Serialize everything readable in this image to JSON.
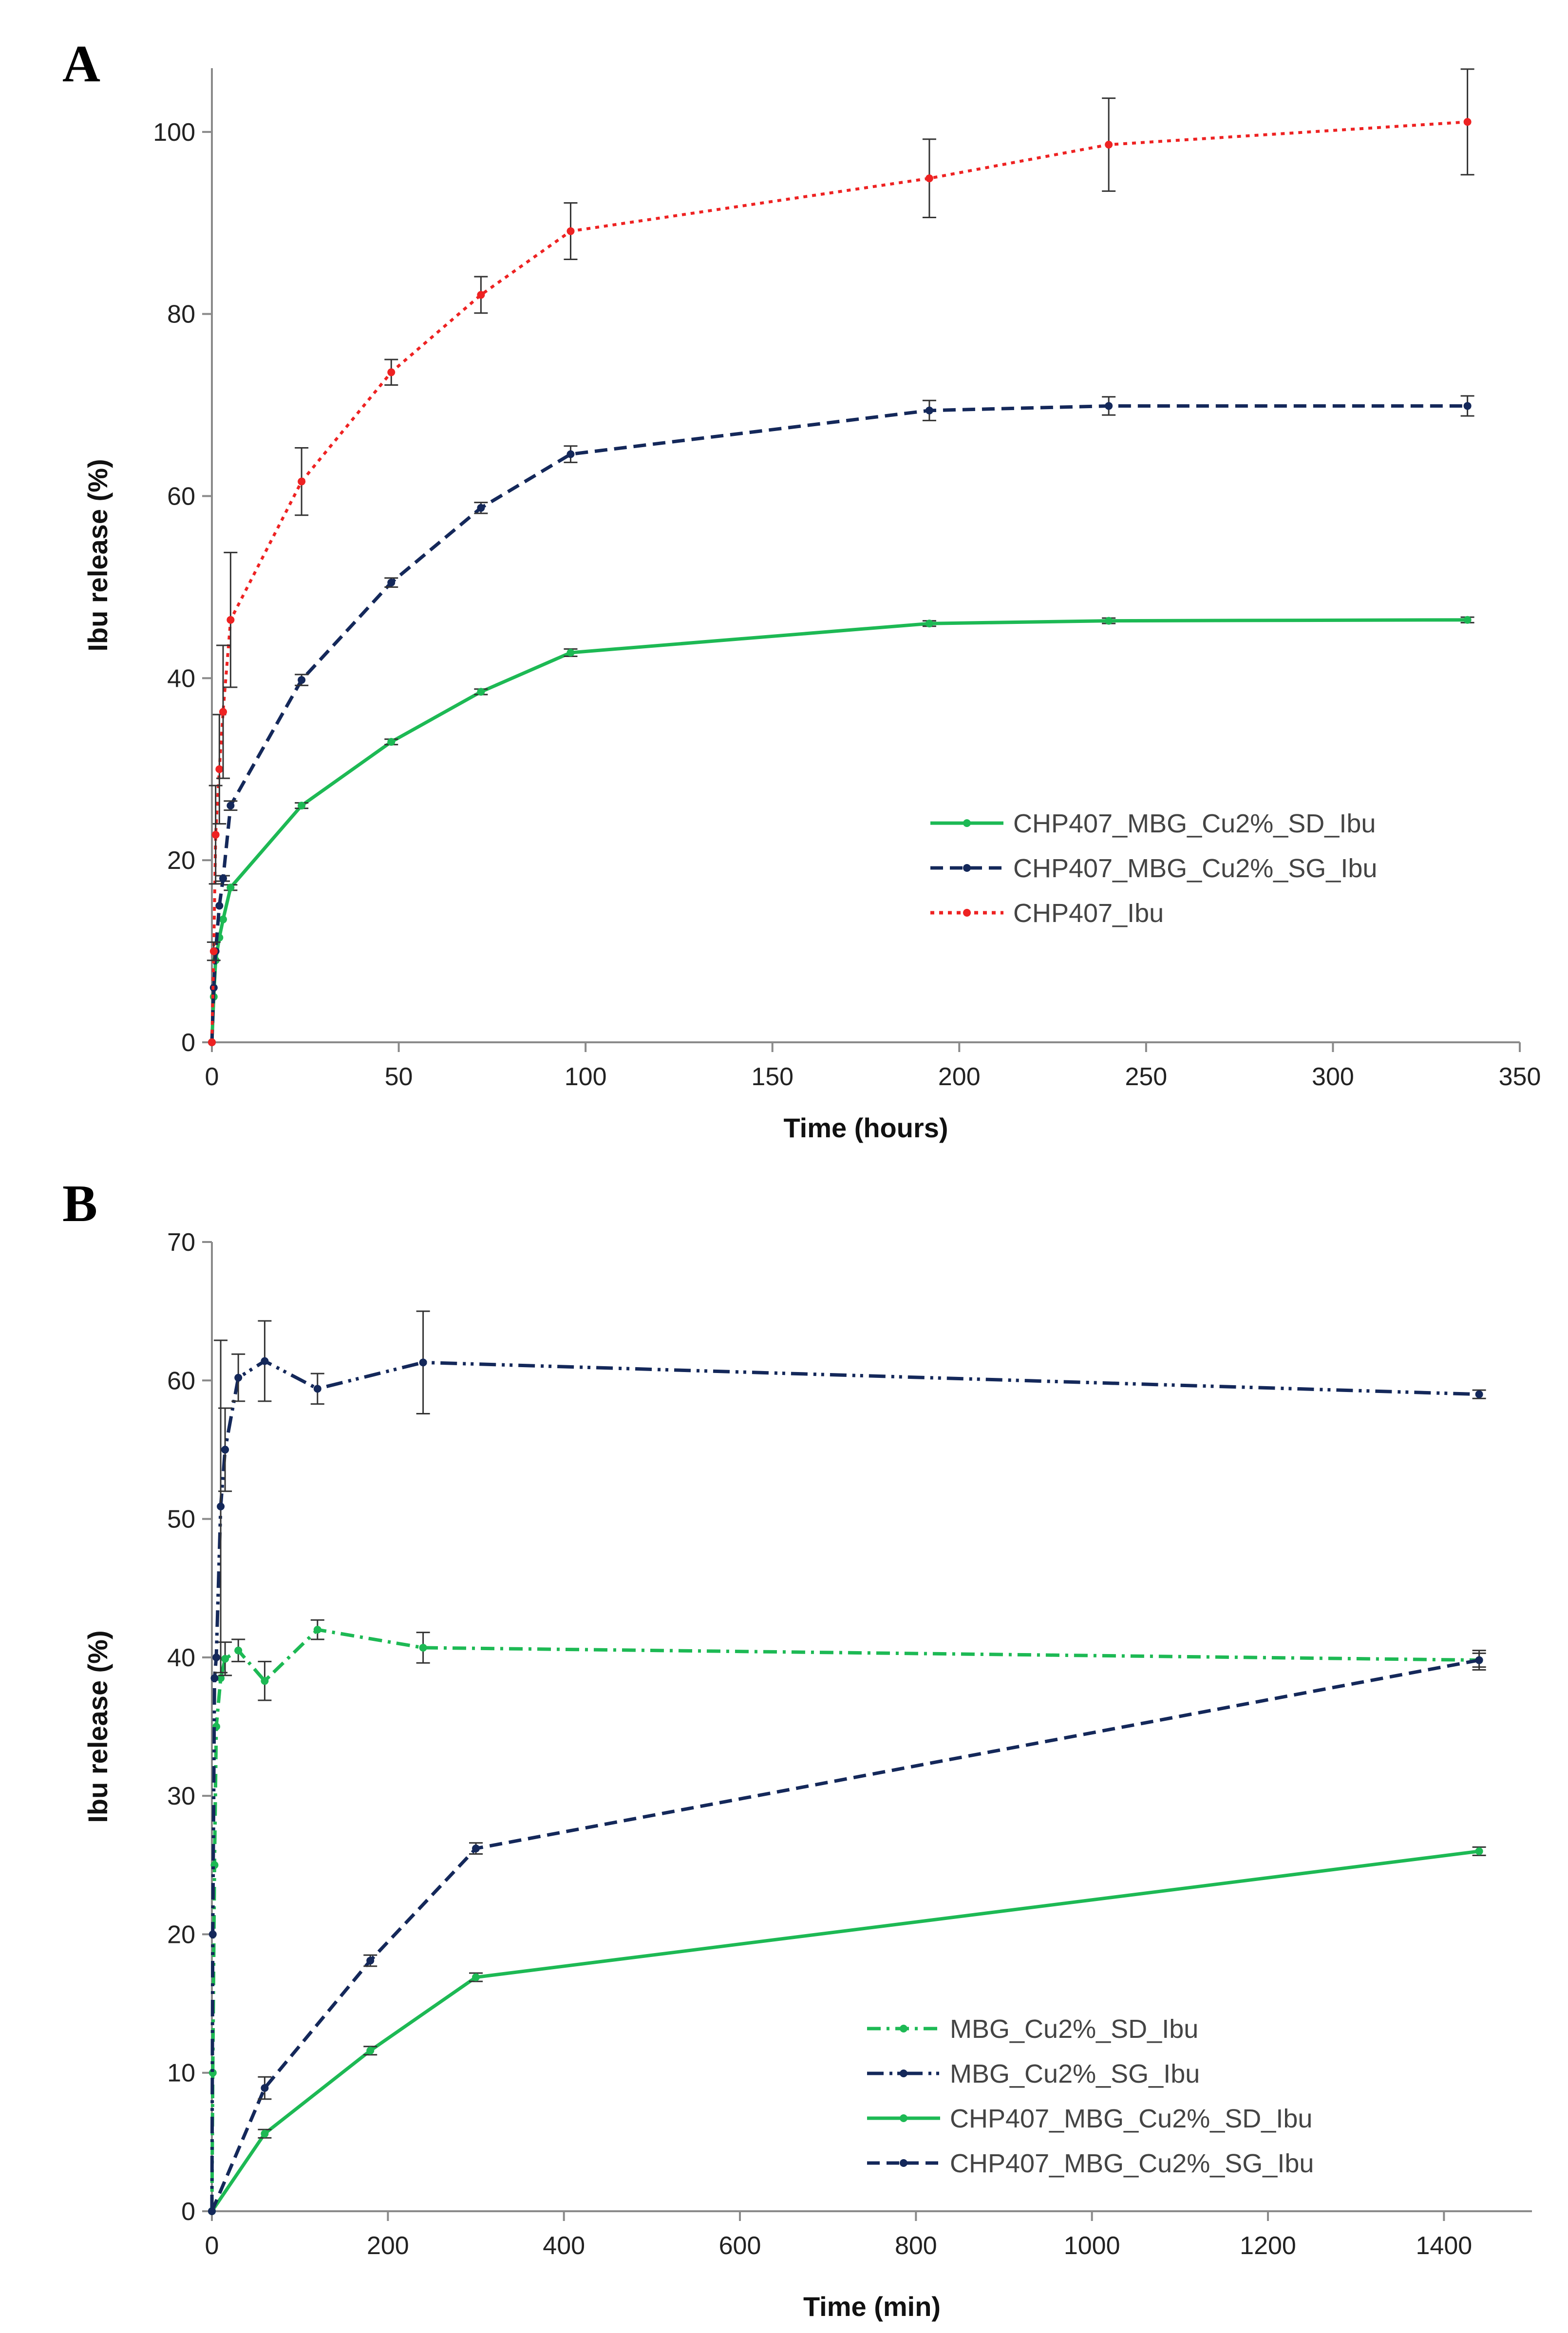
{
  "chart_data": [
    {
      "panel_label": "A",
      "type": "line",
      "xlabel": "Time (hours)",
      "ylabel": "Ibu release (%)",
      "xlim": [
        0,
        350
      ],
      "ylim": [
        0,
        107
      ],
      "xticks": [
        0,
        50,
        100,
        150,
        200,
        250,
        300,
        350
      ],
      "yticks": [
        0,
        20,
        40,
        60,
        80,
        100
      ],
      "grid": false,
      "legend_position": "center-right",
      "series": [
        {
          "name": "CHP407_MBG_Cu2%_SD_Ibu",
          "color": "#1db954",
          "style": "solid",
          "x": [
            0,
            0.5,
            1,
            2,
            3,
            5,
            24,
            48,
            72,
            96,
            192,
            240,
            336
          ],
          "y": [
            0,
            5,
            9,
            11.5,
            13.5,
            17,
            26,
            33,
            38.5,
            42.8,
            46,
            46.3,
            46.4
          ],
          "err": [
            0,
            0,
            0,
            0,
            0,
            0.3,
            0.3,
            0.3,
            0.3,
            0.4,
            0.3,
            0.3,
            0.3
          ]
        },
        {
          "name": "CHP407_MBG_Cu2%_SG_Ibu",
          "color": "#14285a",
          "style": "dashed",
          "x": [
            0,
            0.5,
            1,
            2,
            3,
            5,
            24,
            48,
            72,
            96,
            192,
            240,
            336
          ],
          "y": [
            0,
            6,
            10,
            15,
            18,
            26,
            39.8,
            50.5,
            58.7,
            64.6,
            69.4,
            69.9,
            69.9
          ],
          "err": [
            0,
            0,
            0,
            0,
            0.3,
            0.5,
            0.6,
            0.5,
            0.6,
            0.9,
            1.1,
            1.0,
            1.1
          ]
        },
        {
          "name": "CHP407_Ibu",
          "color": "#ee2222",
          "style": "dotted",
          "x": [
            0,
            0.5,
            1,
            2,
            3,
            5,
            24,
            48,
            72,
            96,
            192,
            240,
            336
          ],
          "y": [
            0,
            10,
            22.8,
            30,
            36.3,
            46.4,
            61.6,
            73.6,
            82.1,
            89.1,
            94.9,
            98.6,
            101.1
          ],
          "err": [
            0,
            1,
            5.4,
            6,
            7.3,
            7.4,
            3.7,
            1.4,
            2.0,
            3.1,
            4.3,
            5.1,
            5.8
          ]
        }
      ]
    },
    {
      "panel_label": "B",
      "type": "line",
      "xlabel": "Time (min)",
      "ylabel": "Ibu release (%)",
      "xlim": [
        0,
        1500
      ],
      "ylim": [
        0,
        70
      ],
      "xticks": [
        0,
        200,
        400,
        600,
        800,
        1000,
        1200,
        1400
      ],
      "yticks": [
        0,
        10,
        20,
        30,
        40,
        50,
        60,
        70
      ],
      "grid": false,
      "legend_position": "lower-right",
      "series": [
        {
          "name": "MBG_Cu2%_SD_Ibu",
          "color": "#1db954",
          "style": "dashdot",
          "x": [
            0,
            1,
            3,
            5,
            10,
            15,
            30,
            60,
            120,
            240,
            1440
          ],
          "y": [
            0,
            10,
            25,
            35,
            38.5,
            39.9,
            40.5,
            38.3,
            42,
            40.7,
            39.8
          ],
          "err": [
            0,
            0,
            0,
            0,
            0,
            1.2,
            0.8,
            1.4,
            0.7,
            1.1,
            0.5
          ]
        },
        {
          "name": "MBG_Cu2%_SG_Ibu",
          "color": "#14285a",
          "style": "dashdotdot",
          "x": [
            0,
            1,
            3,
            5,
            10,
            15,
            30,
            60,
            120,
            240,
            1440
          ],
          "y": [
            0,
            20,
            38.5,
            40,
            50.9,
            55,
            60.2,
            61.4,
            59.4,
            61.3,
            59
          ],
          "err": [
            0,
            0,
            0,
            0,
            12,
            3,
            1.7,
            2.9,
            1.1,
            3.7,
            0.3
          ]
        },
        {
          "name": "CHP407_MBG_Cu2%_SD_Ibu",
          "color": "#1db954",
          "style": "solid",
          "x": [
            0,
            60,
            180,
            300,
            1440
          ],
          "y": [
            0,
            5.6,
            11.6,
            16.9,
            26
          ],
          "err": [
            0,
            0.3,
            0.3,
            0.3,
            0.3
          ]
        },
        {
          "name": "CHP407_MBG_Cu2%_SG_Ibu",
          "color": "#14285a",
          "style": "dashed",
          "x": [
            0,
            60,
            180,
            300,
            1440
          ],
          "y": [
            0,
            8.9,
            18.1,
            26.2,
            39.8
          ],
          "err": [
            0,
            0.8,
            0.4,
            0.4,
            0.7
          ]
        }
      ]
    }
  ]
}
